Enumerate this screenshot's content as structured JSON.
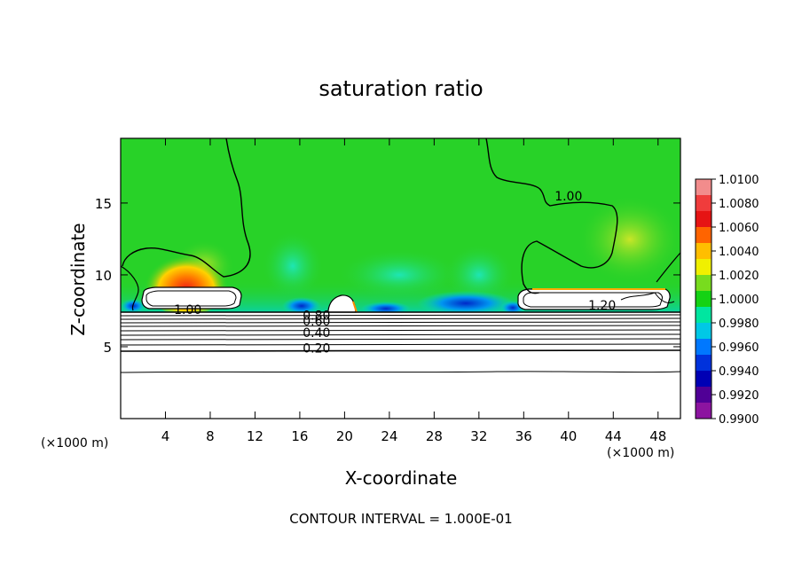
{
  "chart_data": {
    "type": "heatmap",
    "title": "saturation ratio",
    "xlabel": "X-coordinate",
    "ylabel": "Z-coordinate",
    "x_unit": "(×1000 m)",
    "x_ticks": [
      4,
      8,
      12,
      16,
      20,
      24,
      28,
      32,
      36,
      40,
      44,
      48
    ],
    "y_ticks": [
      5,
      10,
      15
    ],
    "xlim": [
      0,
      50
    ],
    "ylim": [
      0,
      19.5
    ],
    "footer": "CONTOUR INTERVAL = 1.000E-01",
    "colorbar": {
      "ticks": [
        "1.0100",
        "1.0080",
        "1.0060",
        "1.0040",
        "1.0020",
        "1.0000",
        "0.9980",
        "0.9960",
        "0.9940",
        "0.9920",
        "0.9900"
      ],
      "colors": [
        "#f28c8c",
        "#f03c3c",
        "#e61414",
        "#ff6400",
        "#ffbe00",
        "#f0f000",
        "#78dc1e",
        "#14d214",
        "#00e6a0",
        "#00c8e6",
        "#0078ff",
        "#0032dc",
        "#0000b4",
        "#500096",
        "#8c14a0"
      ]
    },
    "contour_labels": [
      {
        "text": "1.00",
        "x": 6,
        "z": 7.6
      },
      {
        "text": "1.00",
        "x": 40,
        "z": 15.5
      },
      {
        "text": "1.20",
        "x": 43,
        "z": 7.9
      },
      {
        "text": "0.80",
        "x": 17.5,
        "z": 7.2
      },
      {
        "text": "0.60",
        "x": 17.5,
        "z": 6.8
      },
      {
        "text": "0.40",
        "x": 17.5,
        "z": 6.0
      },
      {
        "text": "0.20",
        "x": 17.5,
        "z": 4.9
      }
    ]
  }
}
